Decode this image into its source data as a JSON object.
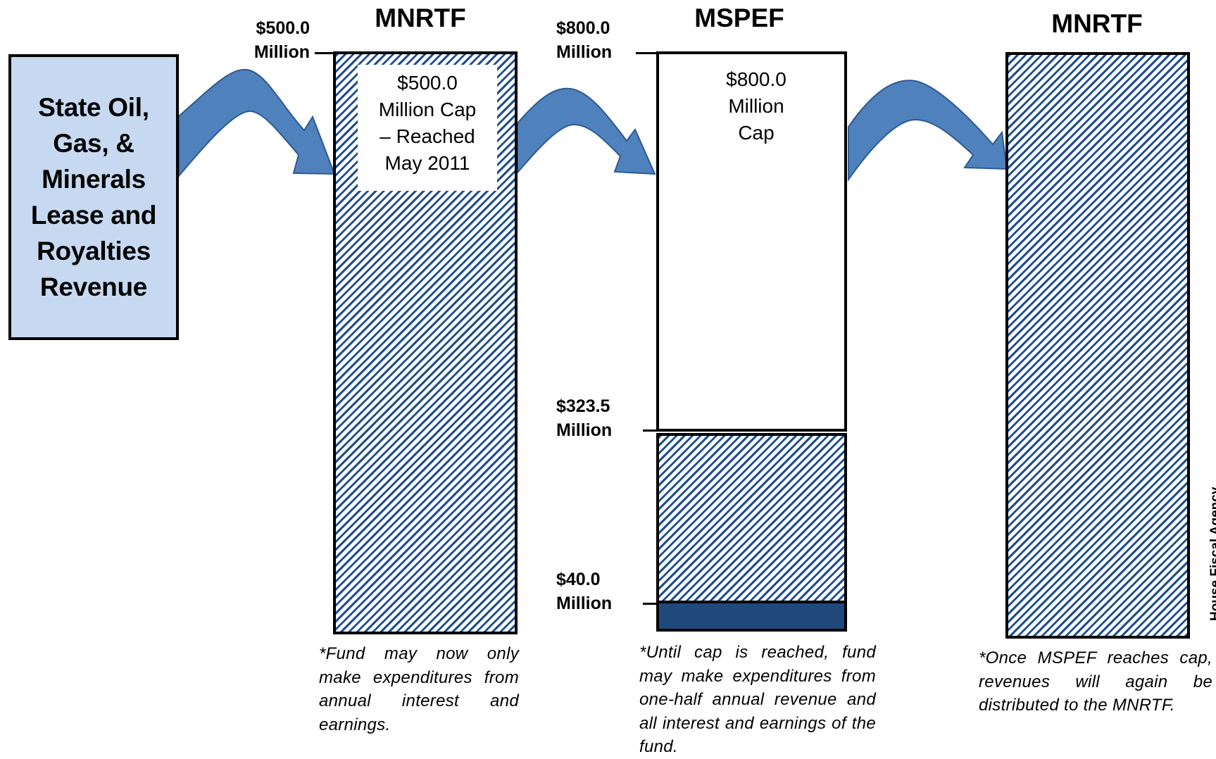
{
  "source": {
    "label": "State Oil,\nGas, &\nMinerals\nLease and\nRoyalties\nRevenue"
  },
  "columns": [
    {
      "title": "MNRTF",
      "top_label": "$500.0\nMillion",
      "cap_text": "$500.0\nMillion  Cap\n– Reached\nMay 2011",
      "note": "*Fund may now only make expenditures from annual interest and earnings."
    },
    {
      "title": "MSPEF",
      "top_label": "$800.0\nMillion",
      "cap_text": "$800.0\nMillion\nCap",
      "mid_label": "$323.5\nMillion",
      "low_label": "$40.0\nMillion",
      "note": "*Until cap is reached, fund may make expenditures from one-half annual revenue and all interest and earnings of the fund."
    },
    {
      "title": "MNRTF",
      "note": "*Once MSPEF reaches cap, revenues will again be distributed to the MNRTF."
    }
  ],
  "credit": "House Fiscal Agency",
  "colors": {
    "stripe": "#1f4e8f",
    "solid": "#1f497d",
    "arrow": "#4f81bd",
    "arrow_outline": "#2c5a92",
    "source_fill": "#c6d9f1"
  }
}
